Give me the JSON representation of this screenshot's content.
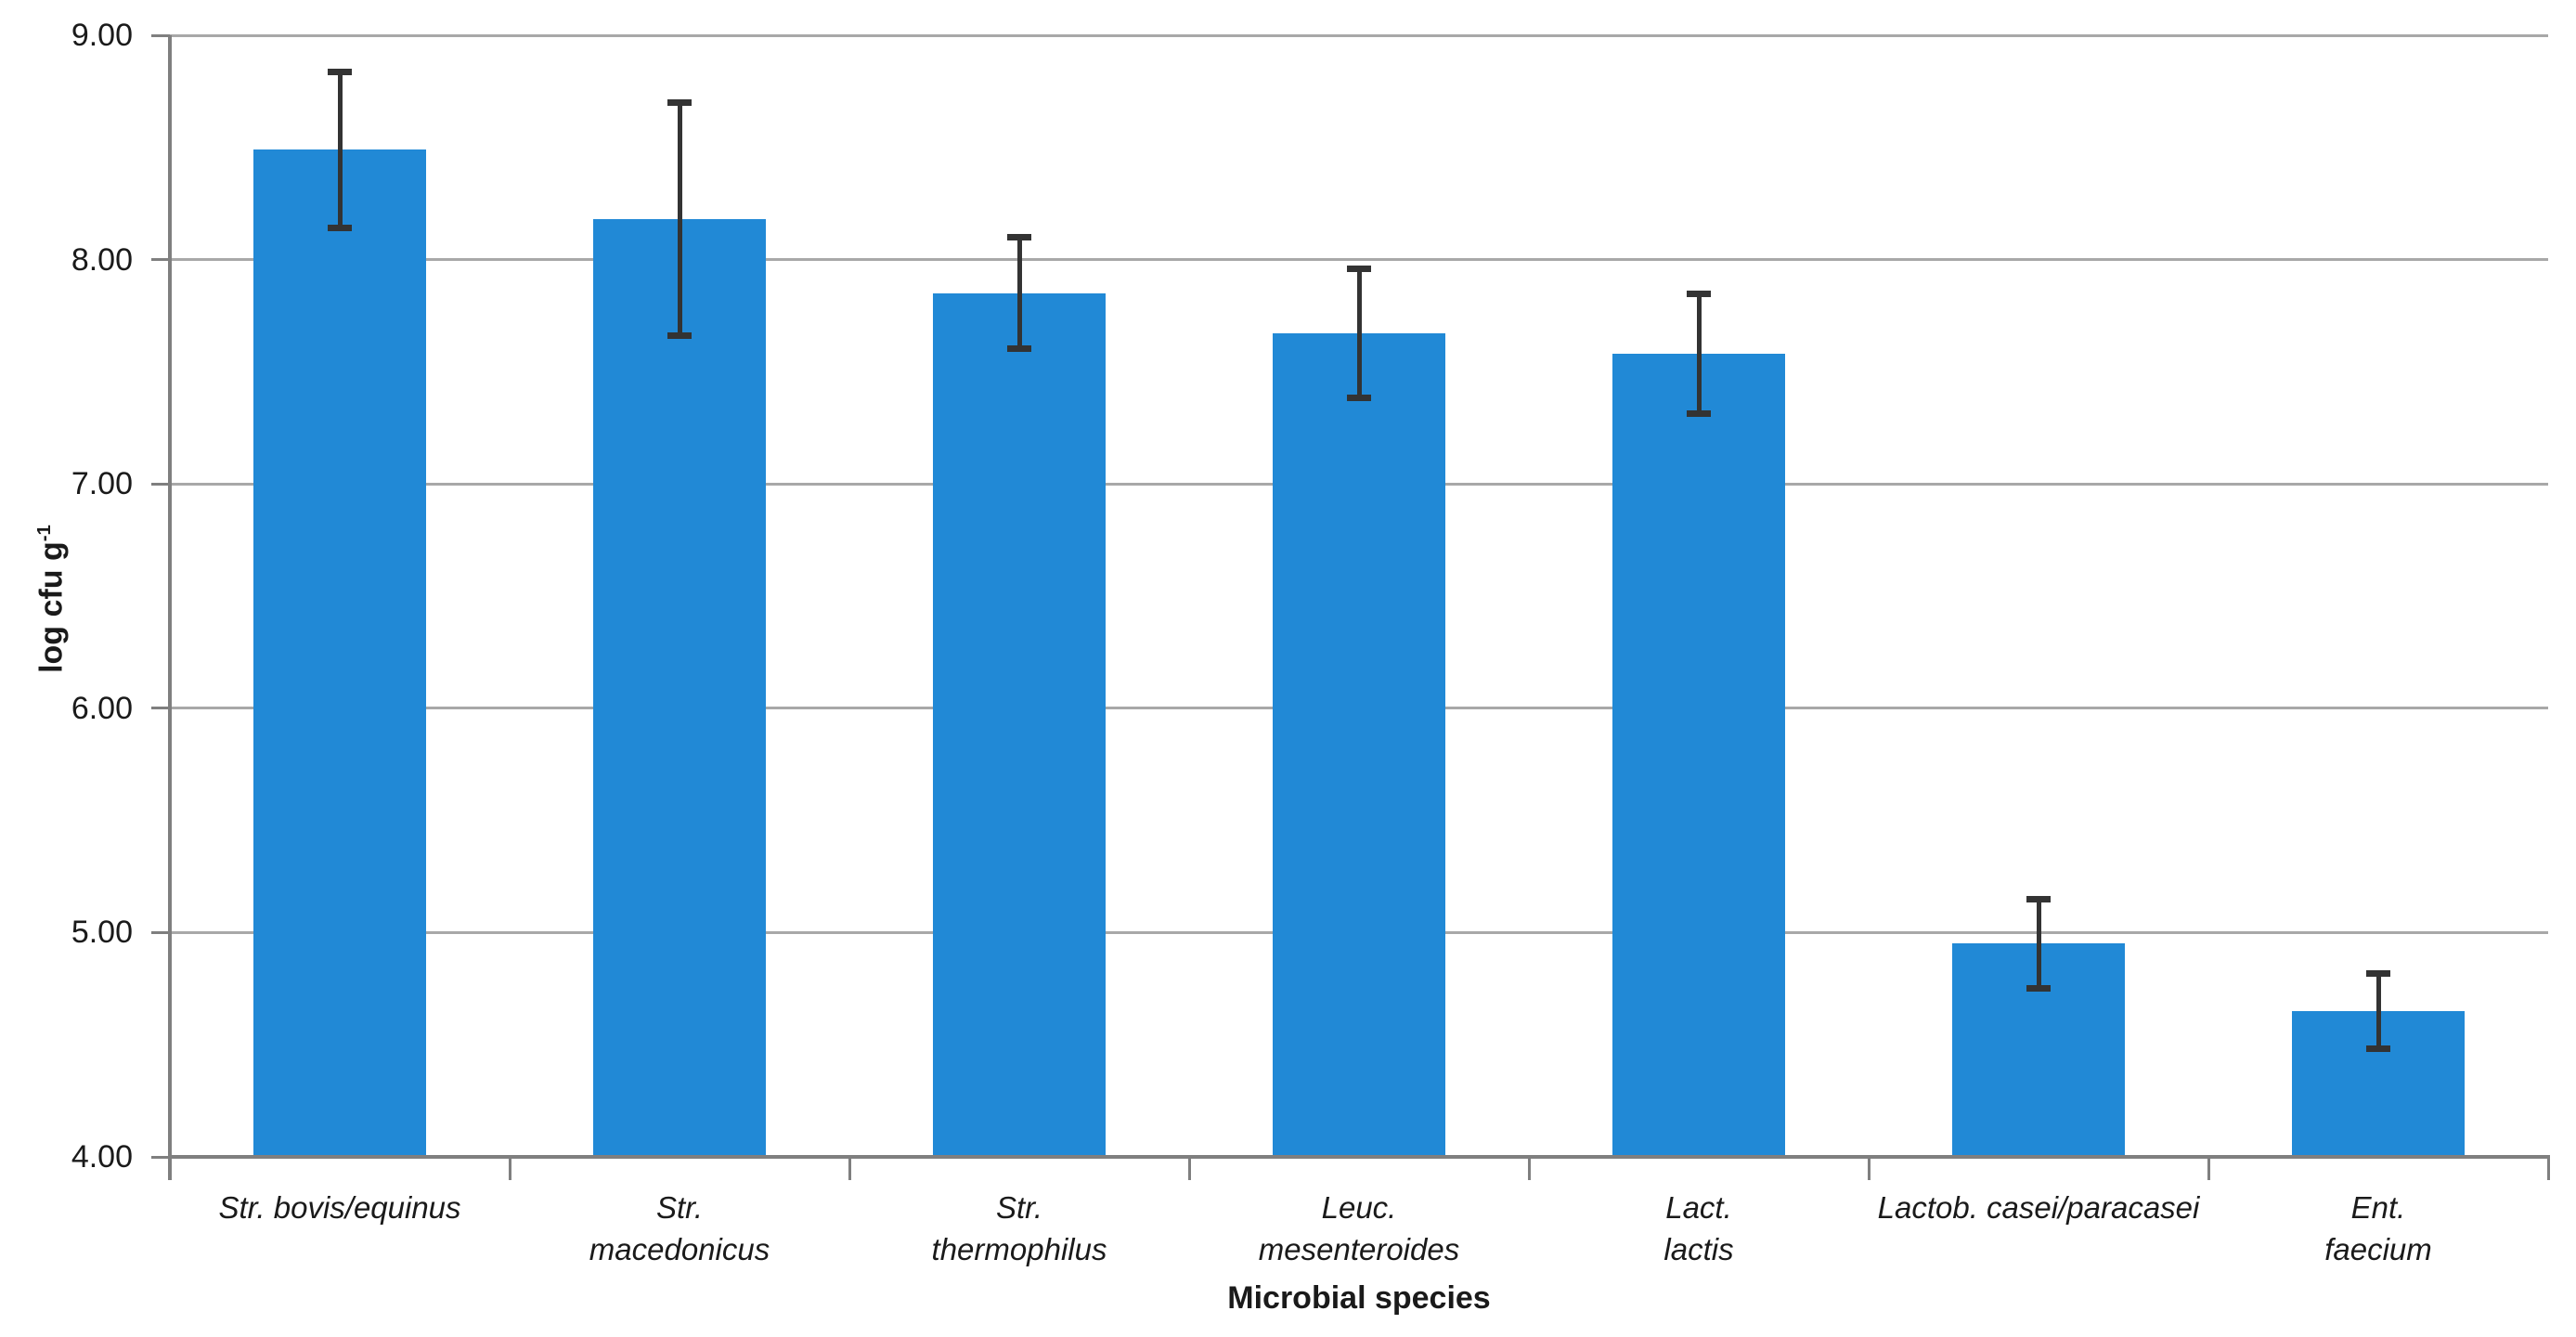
{
  "chart_data": {
    "type": "bar",
    "title": "",
    "xlabel": "Microbial species",
    "ylabel": "log cfu g⁻¹",
    "ylabel_main": "log cfu g",
    "ylabel_sup": "-1",
    "categories": [
      "Str. bovis/equinus",
      "Str. macedonicus",
      "Str. thermophilus",
      "Leuc. mesenteroides",
      "Lact. lactis",
      "Lactob. casei/paracasei",
      "Ent. faecium"
    ],
    "categories_lines": [
      [
        "Str. bovis/equinus"
      ],
      [
        "Str.",
        "macedonicus"
      ],
      [
        "Str.",
        "thermophilus"
      ],
      [
        "Leuc.",
        "mesenteroides"
      ],
      [
        "Lact.",
        "lactis"
      ],
      [
        "Lactob. casei/paracasei"
      ],
      [
        "Ent.",
        "faecium"
      ]
    ],
    "values": [
      8.49,
      8.18,
      7.85,
      7.67,
      7.58,
      4.95,
      4.65
    ],
    "errors": [
      0.35,
      0.52,
      0.25,
      0.29,
      0.27,
      0.2,
      0.17
    ],
    "error_type": "plus-minus",
    "ylim": [
      4.0,
      9.0
    ],
    "ytick_values": [
      9.0,
      8.0,
      7.0,
      6.0,
      5.0,
      4.0
    ],
    "ytick_labels": [
      "9.00",
      "8.00",
      "7.00",
      "6.00",
      "5.00",
      "4.00"
    ],
    "grid": true,
    "legend": false,
    "colors": {
      "bar": "#2189D6",
      "gridline": "#A8A8A8",
      "axis": "#7F7F7F",
      "error": "#333333",
      "text": "#1A1A1A",
      "background": "#FFFFFF"
    }
  }
}
